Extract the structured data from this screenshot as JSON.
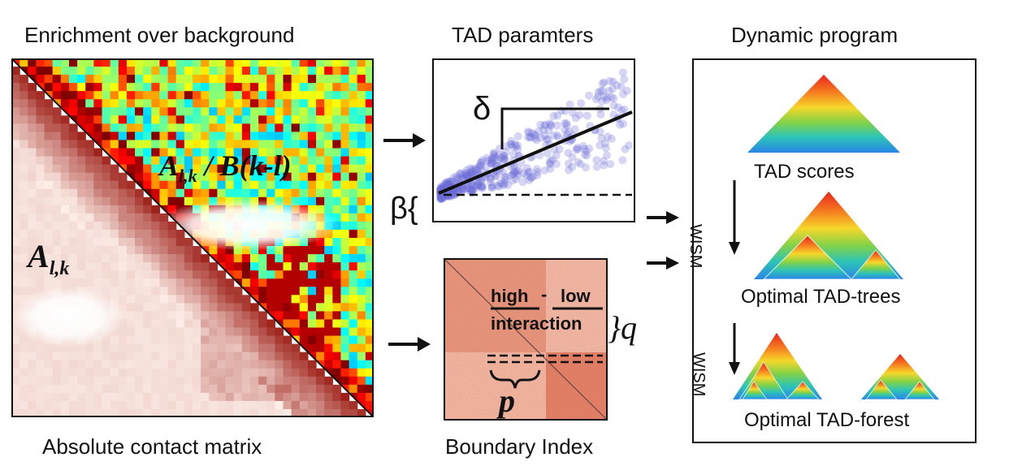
{
  "labels": {
    "enrichment_title": "Enrichment over background",
    "contact_caption": "Absolute contact matrix",
    "tad_title": "TAD paramters",
    "boundary_caption": "Boundary Index",
    "dynamic_title": "Dynamic program",
    "tad_scores": "TAD scores",
    "optimal_trees": "Optimal TAD-trees",
    "optimal_forest": "Optimal TAD-forest",
    "wism_1": "WISM",
    "wism_2": "WISM"
  },
  "matrix": {
    "upper_formula_main": "A",
    "upper_formula_sub": "l,k",
    "upper_formula_rest": " / B(k-l)",
    "lower_formula_main": "A",
    "lower_formula_sub": "l,k"
  },
  "tad_params": {
    "delta_symbol": "δ",
    "beta_symbol": "β{"
  },
  "boundary": {
    "high_label": "high",
    "dash_label": "-",
    "low_label": "low",
    "interaction_label": "interaction",
    "q_label": "}q",
    "p_label": "p"
  },
  "colors": {
    "heat_red": "#b3200f",
    "heat_light": "#fbe4dc",
    "scatter_point": "#6b6bd6",
    "rainbow_top": "#e8241c",
    "rainbow_bottom": "#2a8ce8"
  }
}
